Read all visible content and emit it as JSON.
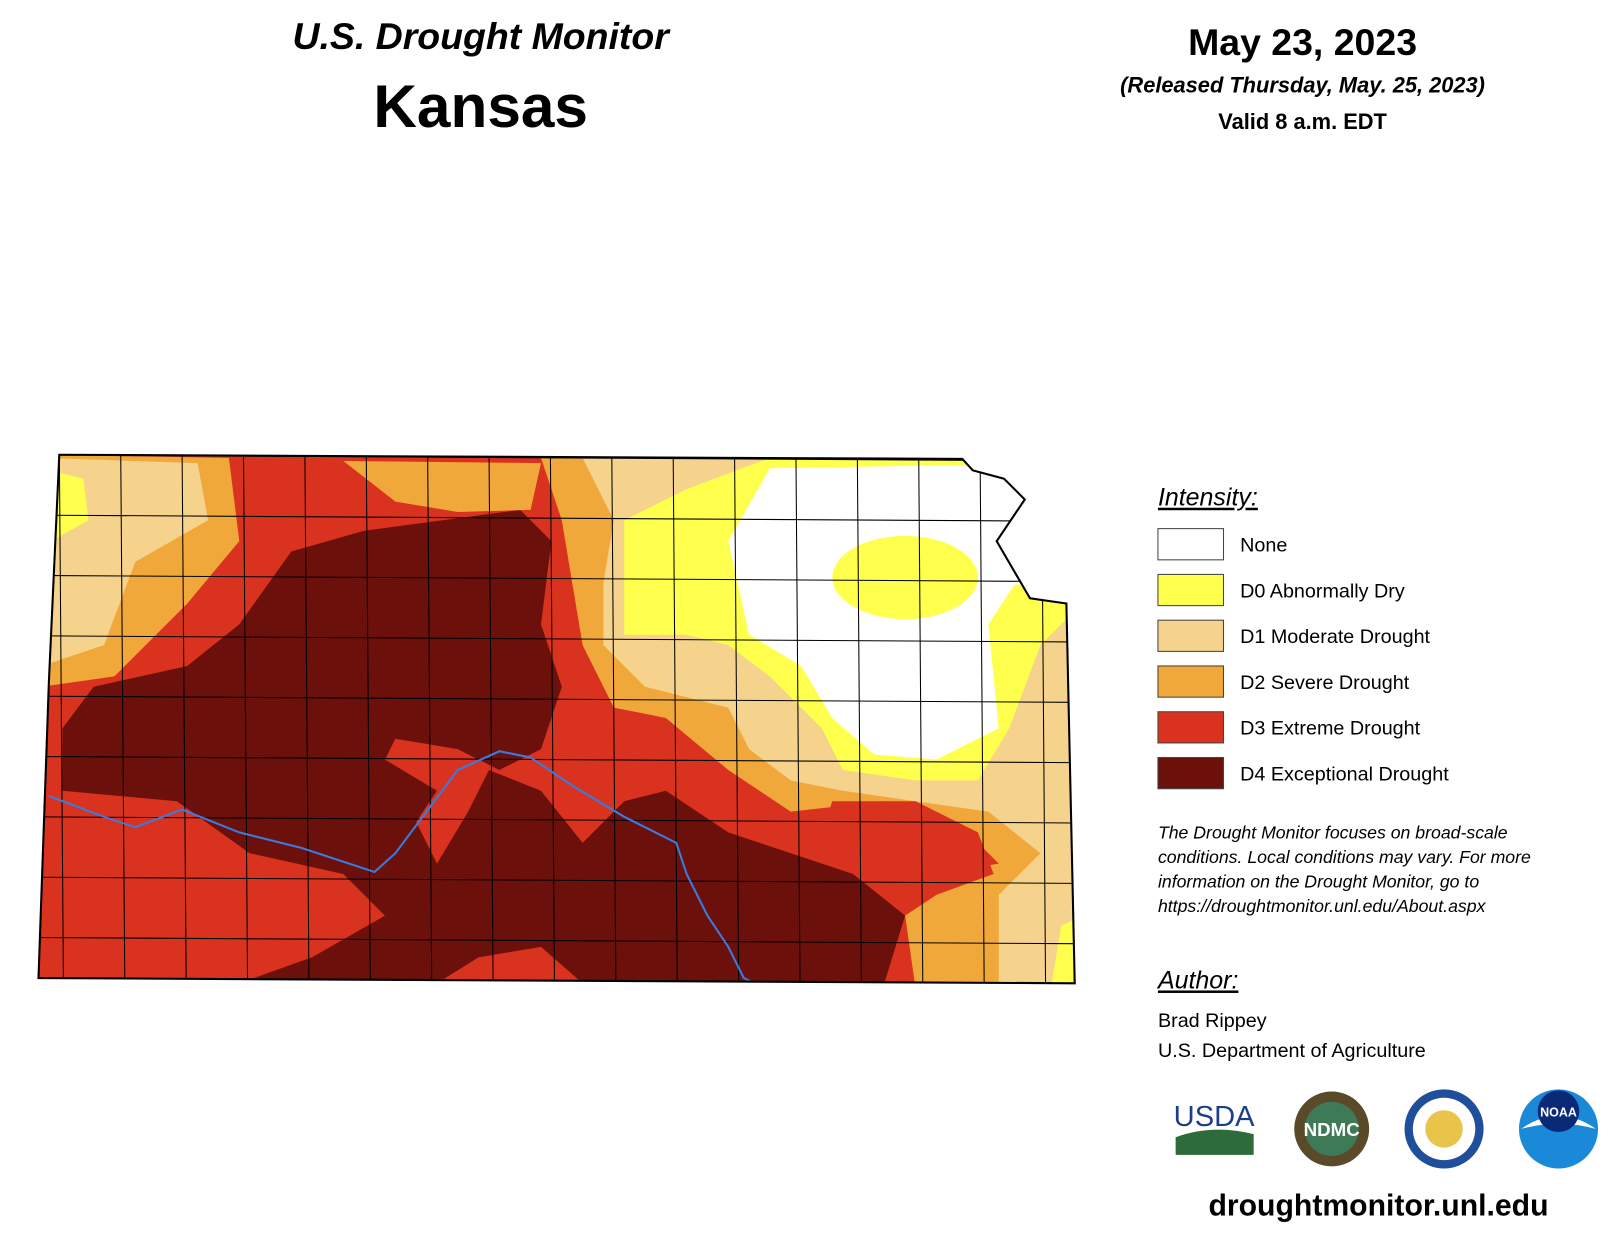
{
  "header": {
    "title": "U.S. Drought Monitor",
    "state": "Kansas",
    "date": "May 23, 2023",
    "released": "(Released Thursday, May. 25, 2023)",
    "valid": "Valid 8 a.m. EDT"
  },
  "legend": {
    "title": "Intensity:",
    "items": [
      {
        "label": "None",
        "color": "#ffffff"
      },
      {
        "label": "D0 Abnormally Dry",
        "color": "#ffff4d"
      },
      {
        "label": "D1 Moderate Drought",
        "color": "#f6d38c"
      },
      {
        "label": "D2 Severe Drought",
        "color": "#f1a83a"
      },
      {
        "label": "D3 Extreme Drought",
        "color": "#d9321e"
      },
      {
        "label": "D4 Exceptional Drought",
        "color": "#6b100b"
      }
    ]
  },
  "note": [
    "The Drought Monitor focuses on broad-scale",
    "conditions. Local conditions may vary. For more",
    "information on the Drought Monitor, go to",
    "https://droughtmonitor.unl.edu/About.aspx"
  ],
  "author": {
    "title": "Author:",
    "name": "Brad Rippey",
    "org": "U.S. Department of Agriculture"
  },
  "logos": [
    "USDA",
    "NDMC",
    "NOAA"
  ],
  "url": "droughtmonitor.unl.edu"
}
